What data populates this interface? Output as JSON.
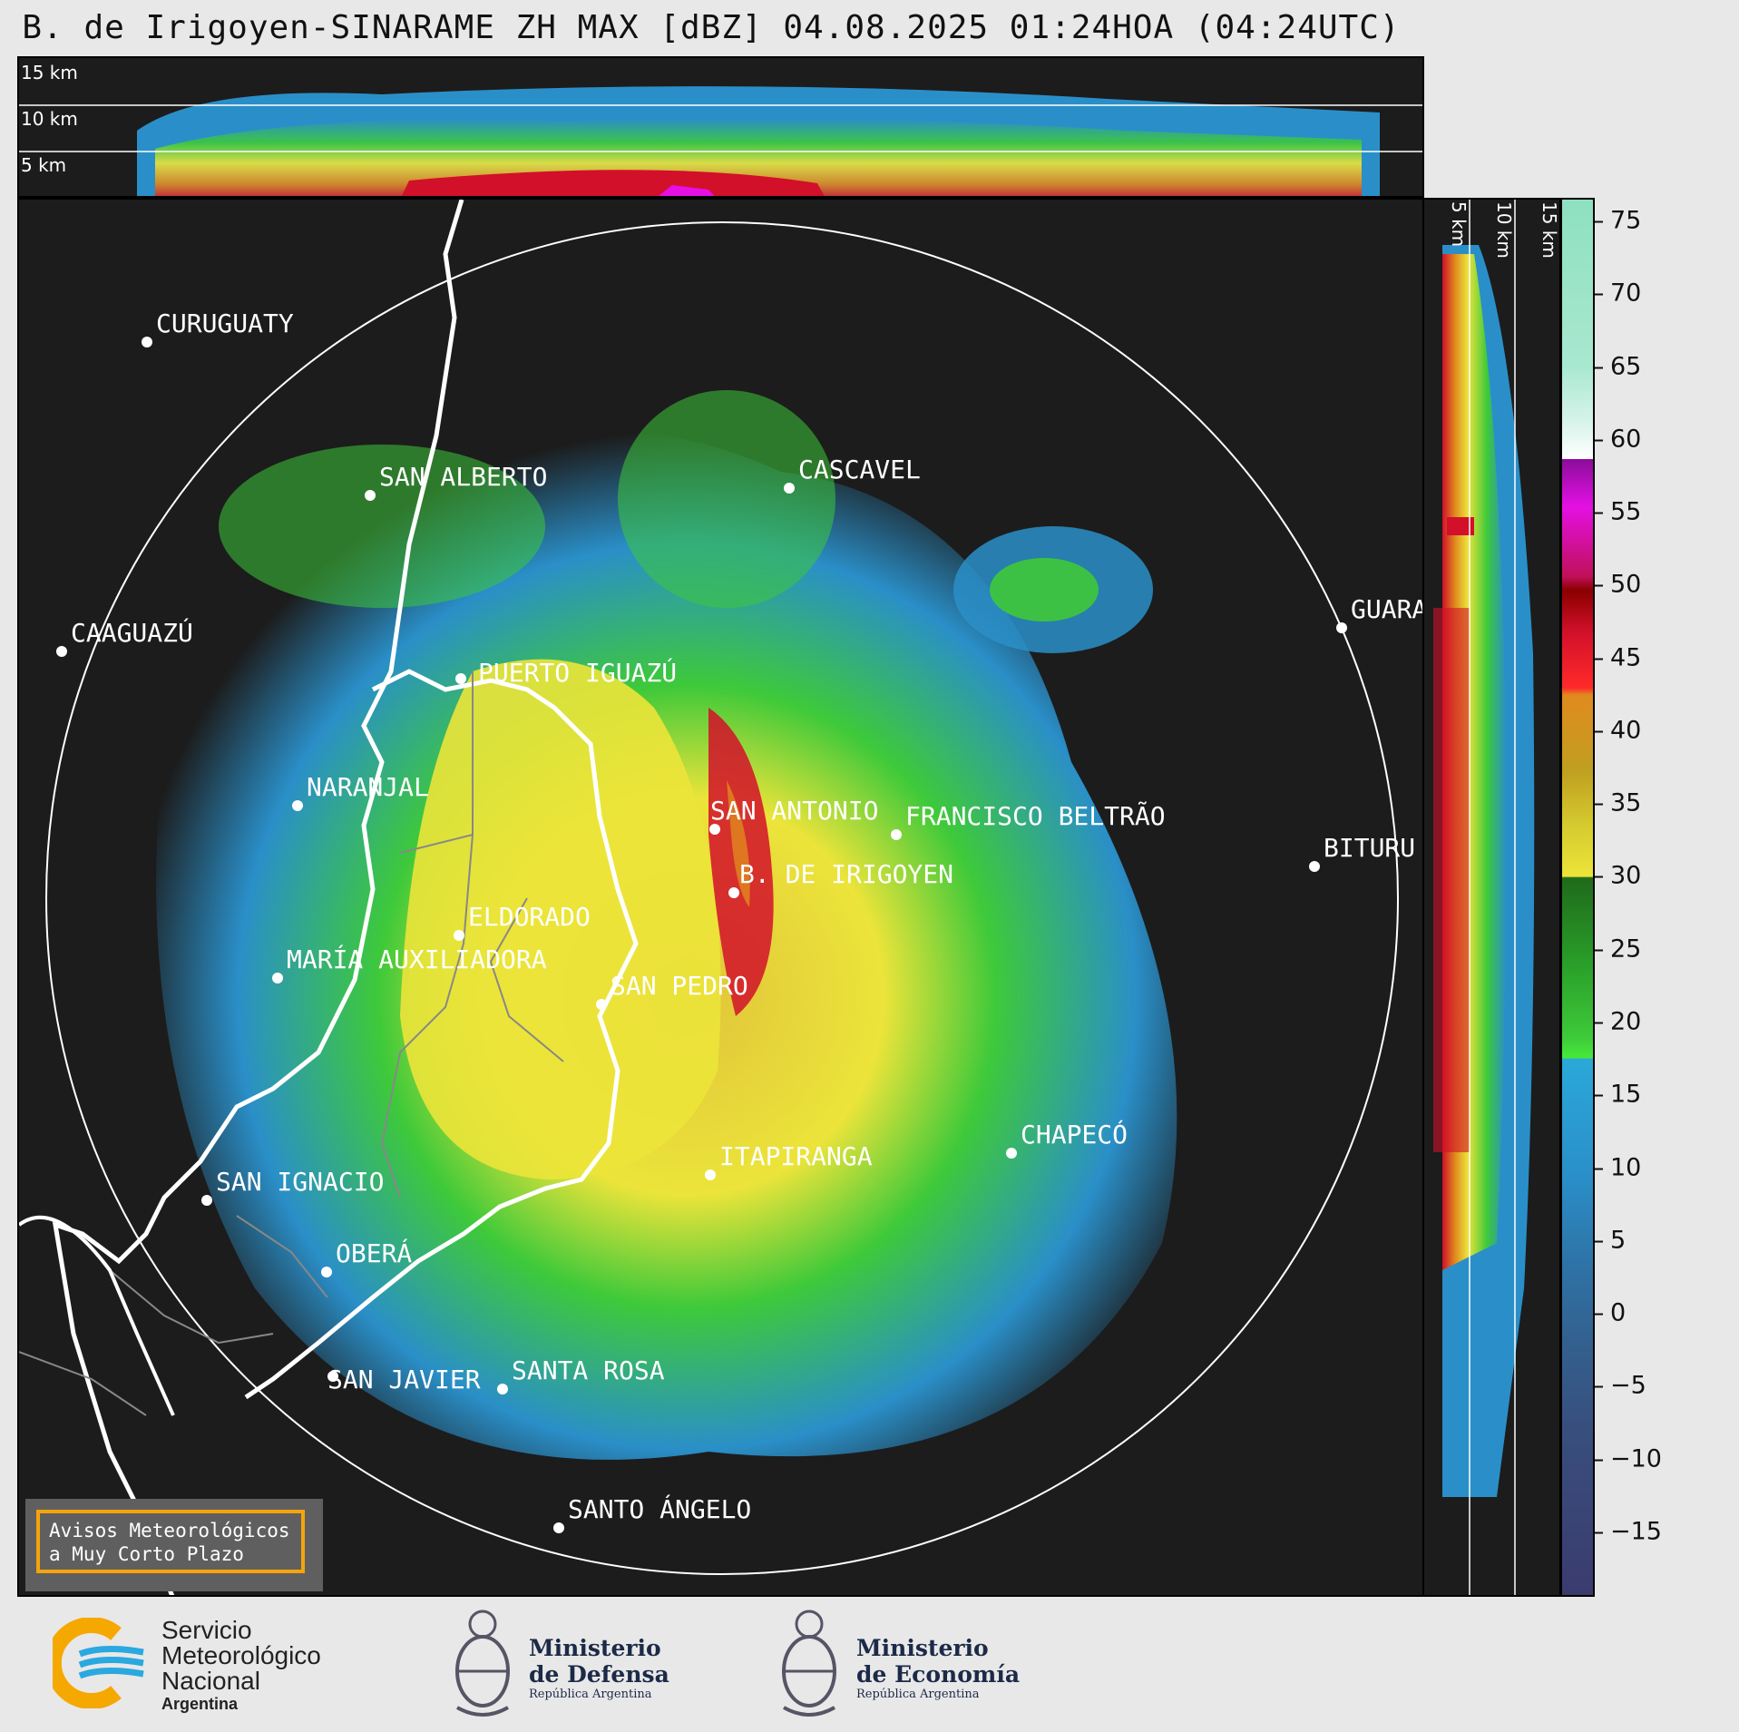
{
  "title": "B. de Irigoyen-SINARAME ZH MAX [dBZ] 04.08.2025 01:24HOA (04:24UTC)",
  "top_panel": {
    "height_labels": [
      "15 km",
      "10 km",
      "5 km"
    ]
  },
  "side_panel": {
    "height_labels": [
      "5 km",
      "10 km",
      "15 km"
    ]
  },
  "cities": [
    {
      "name": "CURUGUATY"
    },
    {
      "name": "SAN ALBERTO"
    },
    {
      "name": "CASCAVEL"
    },
    {
      "name": "CAAGUAZÚ"
    },
    {
      "name": "GUARA"
    },
    {
      "name": "PUERTO IGUAZÚ"
    },
    {
      "name": "NARANJAL"
    },
    {
      "name": "SAN ANTONIO"
    },
    {
      "name": "FRANCISCO BELTRÃO"
    },
    {
      "name": "BITURU"
    },
    {
      "name": "B. DE IRIGOYEN"
    },
    {
      "name": "ELDORADO"
    },
    {
      "name": "MARÍA AUXILIADORA"
    },
    {
      "name": "SAN PEDRO"
    },
    {
      "name": "CHAPECÓ"
    },
    {
      "name": "ITAPIRANGA"
    },
    {
      "name": "SAN IGNACIO"
    },
    {
      "name": "OBERÁ"
    },
    {
      "name": "SAN JAVIER"
    },
    {
      "name": "SANTA ROSA"
    },
    {
      "name": "SANTO ÁNGELO"
    }
  ],
  "colorbar": {
    "unit": "dBZ",
    "range": [
      -20,
      77
    ],
    "ticks": [
      "75",
      "70",
      "65",
      "60",
      "55",
      "50",
      "45",
      "40",
      "35",
      "30",
      "25",
      "20",
      "15",
      "10",
      "5",
      "0",
      "−5",
      "−10",
      "−15"
    ],
    "colors": {
      "low": "#3b3b6e",
      "blue": "#2a8fc8",
      "green": "#3ec93a",
      "yellow": "#ece43a",
      "orange": "#e08a1e",
      "red": "#d2102a",
      "magenta": "#e410e4",
      "mint": "#8ee0c0"
    }
  },
  "notice": {
    "line1": "Avisos Meteorológicos",
    "line2": "a Muy Corto Plazo"
  },
  "footer": {
    "smn": {
      "line1": "Servicio",
      "line2": "Meteorológico",
      "line3": "Nacional",
      "line4": "Argentina"
    },
    "defensa": {
      "line1": "Ministerio",
      "line2": "de Defensa",
      "line3": "República Argentina"
    },
    "economia": {
      "line1": "Ministerio",
      "line2": "de Economía",
      "line3": "República Argentina"
    }
  }
}
